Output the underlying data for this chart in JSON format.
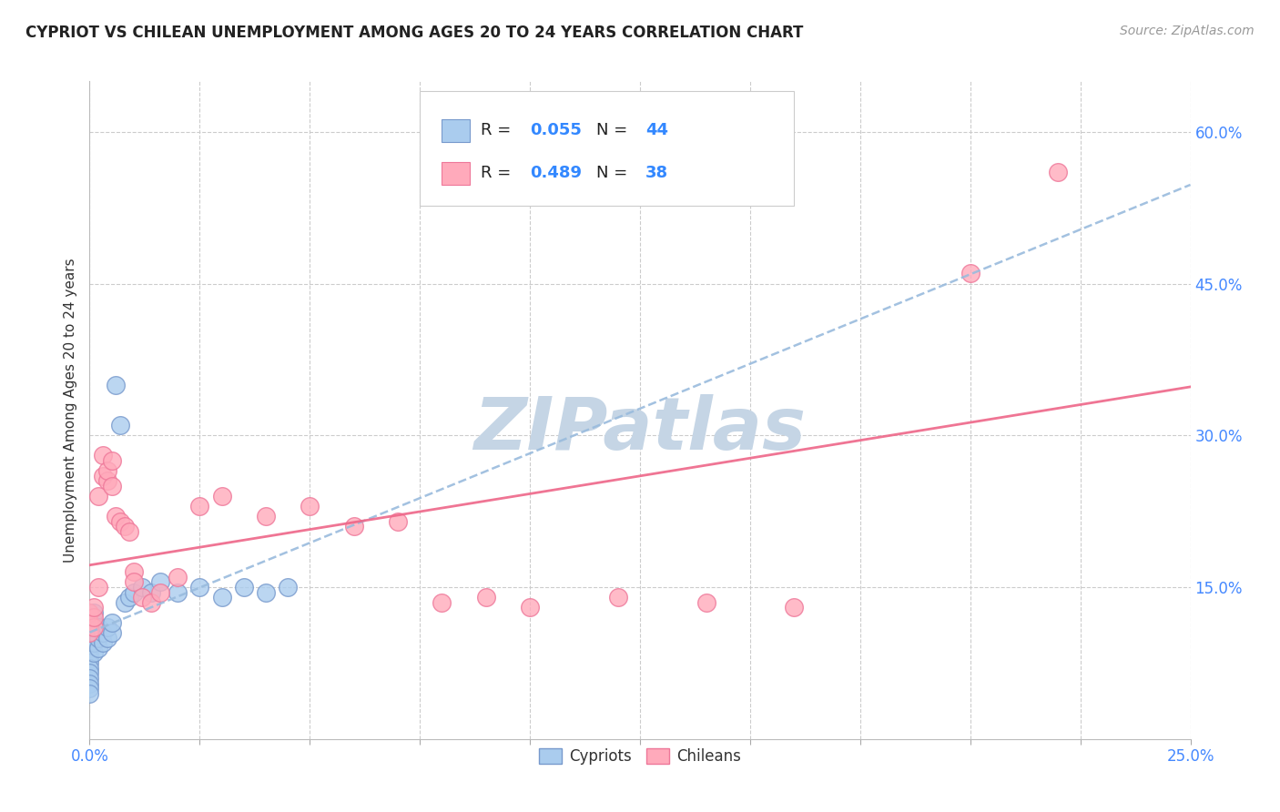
{
  "title": "CYPRIOT VS CHILEAN UNEMPLOYMENT AMONG AGES 20 TO 24 YEARS CORRELATION CHART",
  "source": "Source: ZipAtlas.com",
  "ylabel": "Unemployment Among Ages 20 to 24 years",
  "xlim": [
    0.0,
    0.25
  ],
  "ylim": [
    0.0,
    0.65
  ],
  "xtick_labeled": [
    0.0,
    0.25
  ],
  "xtick_minor": [
    0.025,
    0.05,
    0.075,
    0.1,
    0.125,
    0.15,
    0.175,
    0.2
  ],
  "yticks_right": [
    0.15,
    0.3,
    0.45,
    0.6
  ],
  "background_color": "#ffffff",
  "grid_color": "#cccccc",
  "cypriot_color": "#aaccee",
  "chilean_color": "#ffaabb",
  "cypriot_edge": "#7799cc",
  "chilean_edge": "#ee7799",
  "trendline_cypriot_color": "#99bbdd",
  "trendline_chilean_color": "#ee6688",
  "watermark_color": "#c5d5e5",
  "watermark_text": "ZIPatlas",
  "legend_r1": "R = 0.055",
  "legend_n1": "N = 44",
  "legend_r2": "R = 0.489",
  "legend_n2": "N = 38",
  "cypriot_x": [
    0.0,
    0.0,
    0.0,
    0.0,
    0.0,
    0.0,
    0.0,
    0.0,
    0.0,
    0.0,
    0.0,
    0.0,
    0.0,
    0.0,
    0.0,
    0.0,
    0.001,
    0.001,
    0.001,
    0.001,
    0.001,
    0.002,
    0.002,
    0.002,
    0.003,
    0.003,
    0.004,
    0.004,
    0.005,
    0.005,
    0.006,
    0.007,
    0.008,
    0.009,
    0.01,
    0.012,
    0.014,
    0.016,
    0.02,
    0.025,
    0.03,
    0.035,
    0.04,
    0.045
  ],
  "cypriot_y": [
    0.085,
    0.09,
    0.095,
    0.1,
    0.105,
    0.11,
    0.115,
    0.12,
    0.08,
    0.075,
    0.07,
    0.065,
    0.06,
    0.055,
    0.05,
    0.045,
    0.085,
    0.095,
    0.105,
    0.115,
    0.125,
    0.09,
    0.1,
    0.11,
    0.095,
    0.105,
    0.1,
    0.11,
    0.105,
    0.115,
    0.35,
    0.31,
    0.135,
    0.14,
    0.145,
    0.15,
    0.145,
    0.155,
    0.145,
    0.15,
    0.14,
    0.15,
    0.145,
    0.15
  ],
  "chilean_x": [
    0.0,
    0.0,
    0.0,
    0.001,
    0.001,
    0.001,
    0.002,
    0.002,
    0.003,
    0.003,
    0.004,
    0.004,
    0.005,
    0.005,
    0.006,
    0.007,
    0.008,
    0.009,
    0.01,
    0.01,
    0.012,
    0.014,
    0.016,
    0.02,
    0.025,
    0.03,
    0.04,
    0.05,
    0.06,
    0.07,
    0.08,
    0.09,
    0.1,
    0.12,
    0.14,
    0.16,
    0.2,
    0.22
  ],
  "chilean_y": [
    0.105,
    0.115,
    0.125,
    0.11,
    0.12,
    0.13,
    0.15,
    0.24,
    0.26,
    0.28,
    0.255,
    0.265,
    0.275,
    0.25,
    0.22,
    0.215,
    0.21,
    0.205,
    0.165,
    0.155,
    0.14,
    0.135,
    0.145,
    0.16,
    0.23,
    0.24,
    0.22,
    0.23,
    0.21,
    0.215,
    0.135,
    0.14,
    0.13,
    0.14,
    0.135,
    0.13,
    0.46,
    0.56
  ]
}
